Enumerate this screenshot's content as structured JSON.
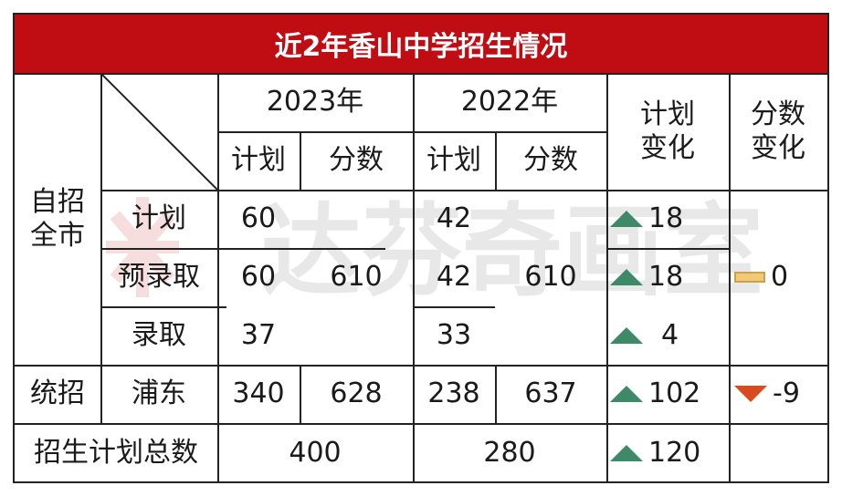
{
  "title": "近2年香山中学招生情况",
  "header": {
    "year_2023": "2023年",
    "year_2022": "2022年",
    "plan": "计划",
    "score": "分数",
    "plan_change": "计划\n变化",
    "score_change": "分数\n变化"
  },
  "rows": {
    "group_zizhao": "自招\n全市",
    "group_tongzhao": "统招",
    "total_label": "招生计划总数",
    "plan_label": "计划",
    "pre_admit_label": "预录取",
    "admit_label": "录取",
    "pudong_label": "浦东"
  },
  "values": {
    "y2023": {
      "plan": "60",
      "pre_admit": "60",
      "score_zizhao": "610",
      "admit": "37",
      "pudong_plan": "340",
      "pudong_score": "628",
      "total": "400"
    },
    "y2022": {
      "plan": "42",
      "pre_admit": "42",
      "score_zizhao": "610",
      "admit": "33",
      "pudong_plan": "238",
      "pudong_score": "637",
      "total": "280"
    },
    "plan_change": {
      "plan": "18",
      "pre_admit": "18",
      "admit": "4",
      "pudong": "102",
      "total": "120"
    },
    "score_change": {
      "zizhao": "0",
      "pudong": "-9"
    }
  },
  "watermark": "达芬奇画室",
  "colors": {
    "title_bg": "#c00d14",
    "up": "#3e8a68",
    "down": "#d84a1f",
    "flat": "#f2c879"
  }
}
